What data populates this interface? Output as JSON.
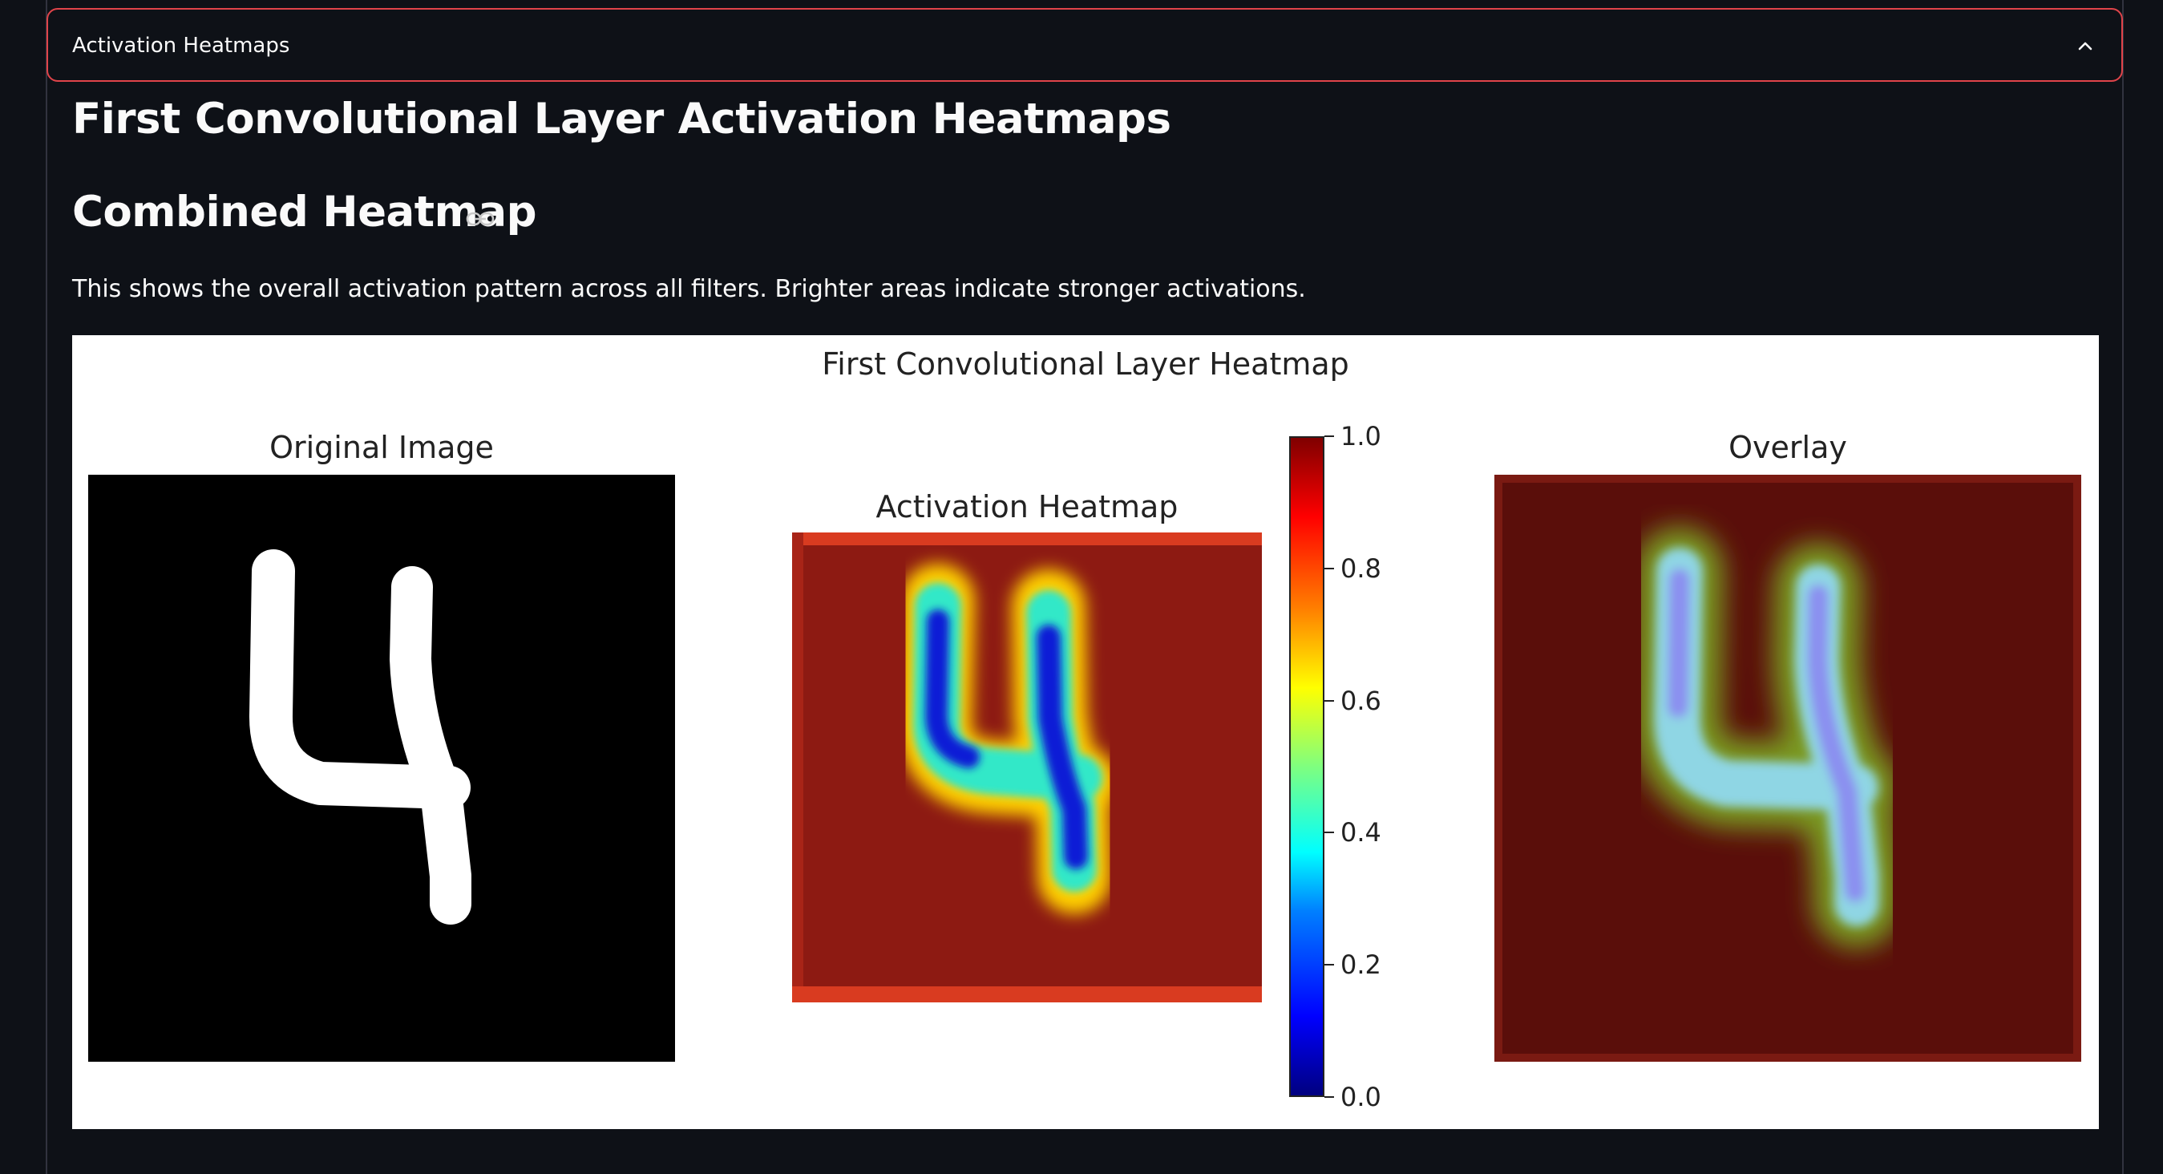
{
  "expander": {
    "title": "Activation Heatmaps"
  },
  "page": {
    "heading": "First Convolutional Layer Activation Heatmaps",
    "subheading": "Combined Heatmap",
    "description": "This shows the overall activation pattern across all filters. Brighter areas indicate stronger activations."
  },
  "figure": {
    "title": "First Convolutional Layer Heatmap",
    "panels": [
      {
        "title": "Original Image"
      },
      {
        "title": "Activation Heatmap"
      },
      {
        "title": "Overlay"
      }
    ],
    "colorbar": {
      "colormap": "jet",
      "range": [
        0.0,
        1.0
      ],
      "ticks": [
        "0.0",
        "0.2",
        "0.4",
        "0.6",
        "0.8",
        "1.0"
      ]
    }
  },
  "icons": {
    "collapse": "chevron-up-icon",
    "anchor": "link-icon"
  }
}
